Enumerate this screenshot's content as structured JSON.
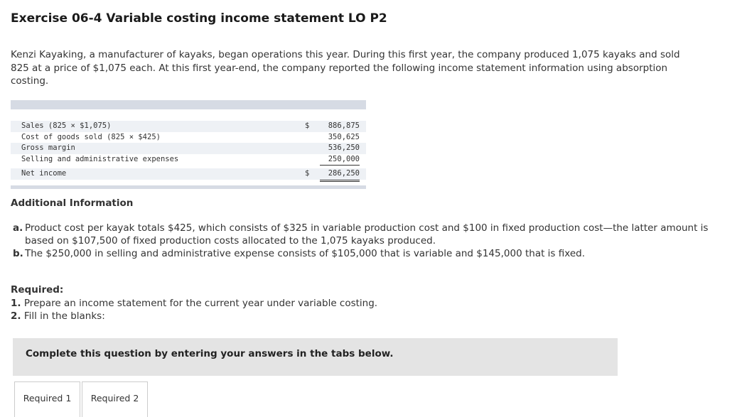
{
  "title": "Exercise 06-4 Variable costing income statement LO P2",
  "intro": "Kenzi Kayaking, a manufacturer of kayaks, began operations this year. During this first year, the company produced 1,075 kayaks and sold 825 at a price of $1,075 each. At this first year-end, the company reported the following income statement information using absorption costing.",
  "income_statement": {
    "rows": [
      {
        "label": "Sales (825 × $1,075)",
        "dollar": "$",
        "amount": "886,875"
      },
      {
        "label": "Cost of goods sold (825 × $425)",
        "dollar": "",
        "amount": "350,625"
      },
      {
        "label": "Gross margin",
        "dollar": "",
        "amount": "536,250"
      },
      {
        "label": "Selling and administrative expenses",
        "dollar": "",
        "amount": "250,000"
      },
      {
        "label": "Net income",
        "dollar": "$",
        "amount": "286,250"
      }
    ]
  },
  "additional": {
    "heading": "Additional Information",
    "items": [
      {
        "letter": "a.",
        "text": "Product cost per kayak totals $425, which consists of $325 in variable production cost and $100 in fixed production cost—the latter amount is based on $107,500 of fixed production costs allocated to the 1,075 kayaks produced."
      },
      {
        "letter": "b.",
        "text": "The $250,000 in selling and administrative expense consists of $105,000 that is variable and $145,000 that is fixed."
      }
    ]
  },
  "required": {
    "heading": "Required:",
    "items": [
      {
        "num": "1.",
        "text": "Prepare an income statement for the current year under variable costing."
      },
      {
        "num": "2.",
        "text": "Fill in the blanks:"
      }
    ]
  },
  "instruction": "Complete this question by entering your answers in the tabs below.",
  "tabs": [
    "Required 1",
    "Required 2"
  ]
}
